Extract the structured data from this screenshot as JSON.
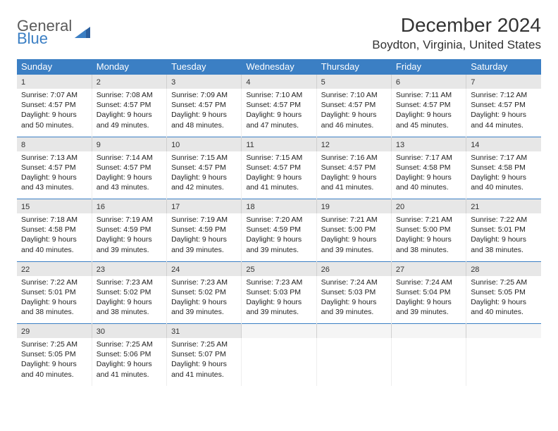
{
  "logo": {
    "word1": "General",
    "word2": "Blue"
  },
  "title": "December 2024",
  "location": "Boydton, Virginia, United States",
  "colors": {
    "header_bg": "#3b7fc4",
    "daynum_bg": "#e7e7e7",
    "text": "#333333",
    "logo_gray": "#5a5a5a",
    "logo_blue": "#3b7fc4"
  },
  "daynames": [
    "Sunday",
    "Monday",
    "Tuesday",
    "Wednesday",
    "Thursday",
    "Friday",
    "Saturday"
  ],
  "weeks": [
    [
      {
        "n": "1",
        "sr": "Sunrise: 7:07 AM",
        "ss": "Sunset: 4:57 PM",
        "d1": "Daylight: 9 hours",
        "d2": "and 50 minutes."
      },
      {
        "n": "2",
        "sr": "Sunrise: 7:08 AM",
        "ss": "Sunset: 4:57 PM",
        "d1": "Daylight: 9 hours",
        "d2": "and 49 minutes."
      },
      {
        "n": "3",
        "sr": "Sunrise: 7:09 AM",
        "ss": "Sunset: 4:57 PM",
        "d1": "Daylight: 9 hours",
        "d2": "and 48 minutes."
      },
      {
        "n": "4",
        "sr": "Sunrise: 7:10 AM",
        "ss": "Sunset: 4:57 PM",
        "d1": "Daylight: 9 hours",
        "d2": "and 47 minutes."
      },
      {
        "n": "5",
        "sr": "Sunrise: 7:10 AM",
        "ss": "Sunset: 4:57 PM",
        "d1": "Daylight: 9 hours",
        "d2": "and 46 minutes."
      },
      {
        "n": "6",
        "sr": "Sunrise: 7:11 AM",
        "ss": "Sunset: 4:57 PM",
        "d1": "Daylight: 9 hours",
        "d2": "and 45 minutes."
      },
      {
        "n": "7",
        "sr": "Sunrise: 7:12 AM",
        "ss": "Sunset: 4:57 PM",
        "d1": "Daylight: 9 hours",
        "d2": "and 44 minutes."
      }
    ],
    [
      {
        "n": "8",
        "sr": "Sunrise: 7:13 AM",
        "ss": "Sunset: 4:57 PM",
        "d1": "Daylight: 9 hours",
        "d2": "and 43 minutes."
      },
      {
        "n": "9",
        "sr": "Sunrise: 7:14 AM",
        "ss": "Sunset: 4:57 PM",
        "d1": "Daylight: 9 hours",
        "d2": "and 43 minutes."
      },
      {
        "n": "10",
        "sr": "Sunrise: 7:15 AM",
        "ss": "Sunset: 4:57 PM",
        "d1": "Daylight: 9 hours",
        "d2": "and 42 minutes."
      },
      {
        "n": "11",
        "sr": "Sunrise: 7:15 AM",
        "ss": "Sunset: 4:57 PM",
        "d1": "Daylight: 9 hours",
        "d2": "and 41 minutes."
      },
      {
        "n": "12",
        "sr": "Sunrise: 7:16 AM",
        "ss": "Sunset: 4:57 PM",
        "d1": "Daylight: 9 hours",
        "d2": "and 41 minutes."
      },
      {
        "n": "13",
        "sr": "Sunrise: 7:17 AM",
        "ss": "Sunset: 4:58 PM",
        "d1": "Daylight: 9 hours",
        "d2": "and 40 minutes."
      },
      {
        "n": "14",
        "sr": "Sunrise: 7:17 AM",
        "ss": "Sunset: 4:58 PM",
        "d1": "Daylight: 9 hours",
        "d2": "and 40 minutes."
      }
    ],
    [
      {
        "n": "15",
        "sr": "Sunrise: 7:18 AM",
        "ss": "Sunset: 4:58 PM",
        "d1": "Daylight: 9 hours",
        "d2": "and 40 minutes."
      },
      {
        "n": "16",
        "sr": "Sunrise: 7:19 AM",
        "ss": "Sunset: 4:59 PM",
        "d1": "Daylight: 9 hours",
        "d2": "and 39 minutes."
      },
      {
        "n": "17",
        "sr": "Sunrise: 7:19 AM",
        "ss": "Sunset: 4:59 PM",
        "d1": "Daylight: 9 hours",
        "d2": "and 39 minutes."
      },
      {
        "n": "18",
        "sr": "Sunrise: 7:20 AM",
        "ss": "Sunset: 4:59 PM",
        "d1": "Daylight: 9 hours",
        "d2": "and 39 minutes."
      },
      {
        "n": "19",
        "sr": "Sunrise: 7:21 AM",
        "ss": "Sunset: 5:00 PM",
        "d1": "Daylight: 9 hours",
        "d2": "and 39 minutes."
      },
      {
        "n": "20",
        "sr": "Sunrise: 7:21 AM",
        "ss": "Sunset: 5:00 PM",
        "d1": "Daylight: 9 hours",
        "d2": "and 38 minutes."
      },
      {
        "n": "21",
        "sr": "Sunrise: 7:22 AM",
        "ss": "Sunset: 5:01 PM",
        "d1": "Daylight: 9 hours",
        "d2": "and 38 minutes."
      }
    ],
    [
      {
        "n": "22",
        "sr": "Sunrise: 7:22 AM",
        "ss": "Sunset: 5:01 PM",
        "d1": "Daylight: 9 hours",
        "d2": "and 38 minutes."
      },
      {
        "n": "23",
        "sr": "Sunrise: 7:23 AM",
        "ss": "Sunset: 5:02 PM",
        "d1": "Daylight: 9 hours",
        "d2": "and 38 minutes."
      },
      {
        "n": "24",
        "sr": "Sunrise: 7:23 AM",
        "ss": "Sunset: 5:02 PM",
        "d1": "Daylight: 9 hours",
        "d2": "and 39 minutes."
      },
      {
        "n": "25",
        "sr": "Sunrise: 7:23 AM",
        "ss": "Sunset: 5:03 PM",
        "d1": "Daylight: 9 hours",
        "d2": "and 39 minutes."
      },
      {
        "n": "26",
        "sr": "Sunrise: 7:24 AM",
        "ss": "Sunset: 5:03 PM",
        "d1": "Daylight: 9 hours",
        "d2": "and 39 minutes."
      },
      {
        "n": "27",
        "sr": "Sunrise: 7:24 AM",
        "ss": "Sunset: 5:04 PM",
        "d1": "Daylight: 9 hours",
        "d2": "and 39 minutes."
      },
      {
        "n": "28",
        "sr": "Sunrise: 7:25 AM",
        "ss": "Sunset: 5:05 PM",
        "d1": "Daylight: 9 hours",
        "d2": "and 40 minutes."
      }
    ],
    [
      {
        "n": "29",
        "sr": "Sunrise: 7:25 AM",
        "ss": "Sunset: 5:05 PM",
        "d1": "Daylight: 9 hours",
        "d2": "and 40 minutes."
      },
      {
        "n": "30",
        "sr": "Sunrise: 7:25 AM",
        "ss": "Sunset: 5:06 PM",
        "d1": "Daylight: 9 hours",
        "d2": "and 41 minutes."
      },
      {
        "n": "31",
        "sr": "Sunrise: 7:25 AM",
        "ss": "Sunset: 5:07 PM",
        "d1": "Daylight: 9 hours",
        "d2": "and 41 minutes."
      },
      {
        "empty": true
      },
      {
        "empty": true
      },
      {
        "empty": true
      },
      {
        "empty": true
      }
    ]
  ]
}
